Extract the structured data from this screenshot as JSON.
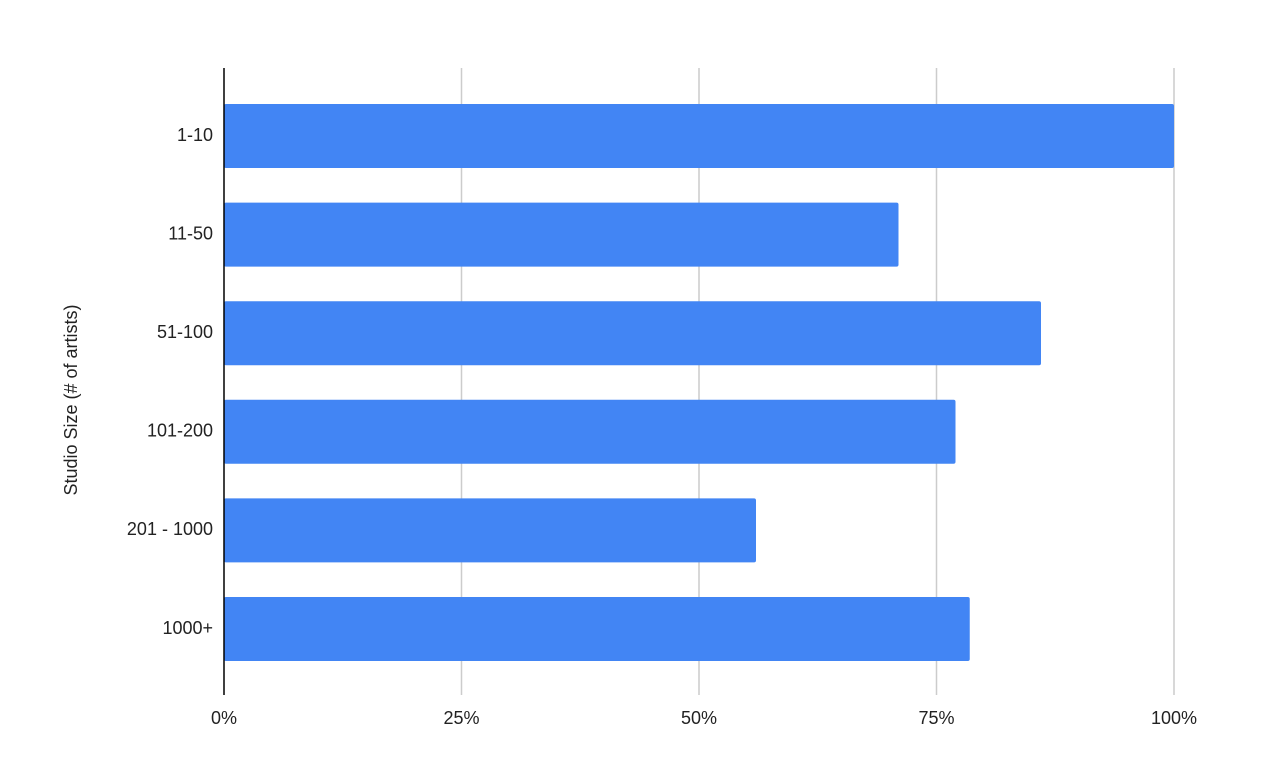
{
  "chart_data": {
    "type": "bar",
    "orientation": "horizontal",
    "y_axis_label": "Studio Size (# of artists)",
    "categories": [
      "1-10",
      "11-50",
      "51-100",
      "101-200",
      "201 - 1000",
      "1000+"
    ],
    "values": [
      100,
      71,
      86,
      77,
      56,
      78.5
    ],
    "color": "#4285f4",
    "xlim": [
      0,
      100
    ],
    "xticks": [
      {
        "value": 0,
        "label": "0%"
      },
      {
        "value": 25,
        "label": "25%"
      },
      {
        "value": 50,
        "label": "50%"
      },
      {
        "value": 75,
        "label": "75%"
      },
      {
        "value": 100,
        "label": "100%"
      }
    ],
    "grid": true
  }
}
